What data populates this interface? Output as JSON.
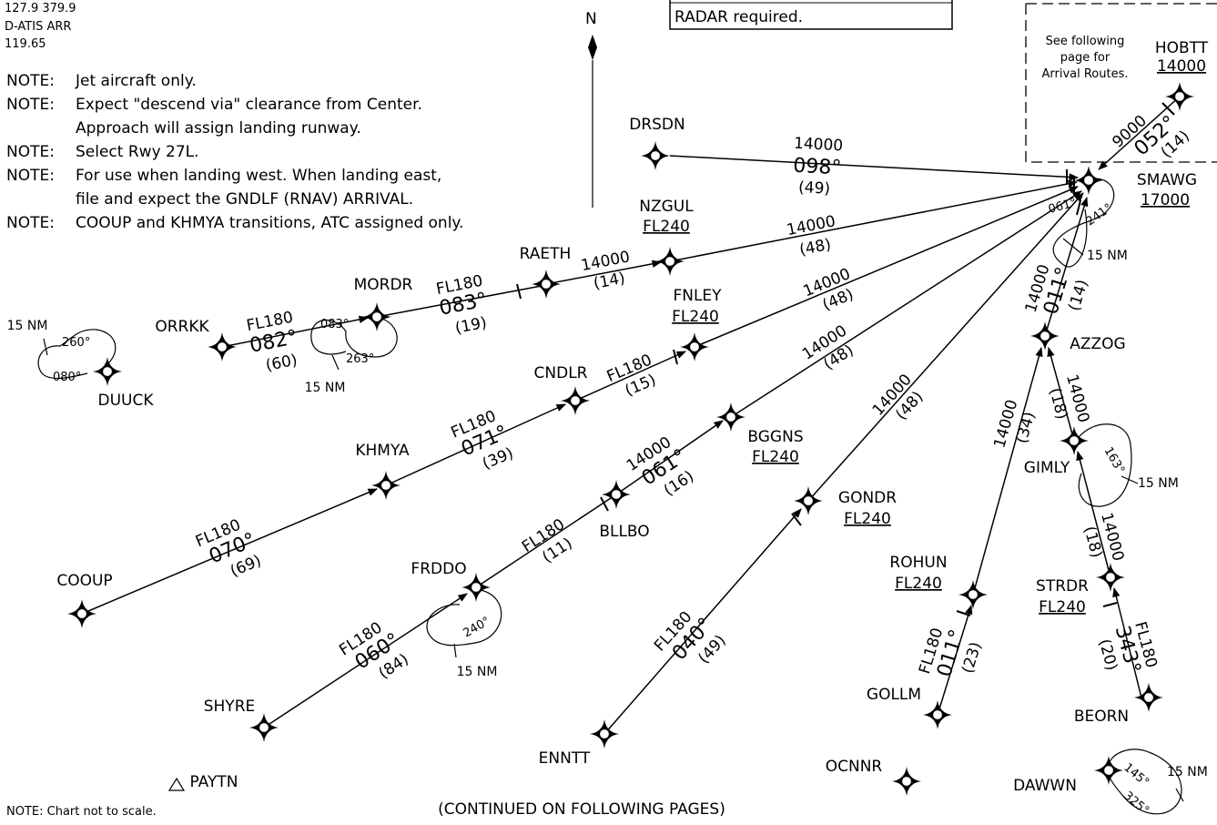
{
  "header": {
    "freq_line1": "127.9  379.9",
    "freq_line2": "D-ATIS ARR",
    "freq_line3": "119.65",
    "radar_note": "RADAR required.",
    "north": "N"
  },
  "notes": [
    {
      "prefix": "NOTE:",
      "text": "Jet aircraft only."
    },
    {
      "prefix": "NOTE:",
      "text": "Expect \"descend via\" clearance from Center."
    },
    {
      "prefix": "",
      "text": "Approach will assign landing runway."
    },
    {
      "prefix": "NOTE:",
      "text": "Select Rwy 27L."
    },
    {
      "prefix": "NOTE:",
      "text": "For use when landing west. When landing east,"
    },
    {
      "prefix": "",
      "text": "file and expect the GNDLF (RNAV) ARRIVAL."
    },
    {
      "prefix": "NOTE:",
      "text": "COOUP and KHMYA transitions, ATC assigned only."
    }
  ],
  "inset_note": [
    "See following",
    "page for",
    "Arrival Routes."
  ],
  "footer": {
    "scale_note": "NOTE:  Chart not to scale.",
    "continued": "(CONTINUED ON FOLLOWING PAGES)"
  },
  "fixes": {
    "HOBTT": {
      "name": "HOBTT",
      "alt": "14000"
    },
    "SMAWG": {
      "name": "SMAWG",
      "alt": "17000"
    },
    "DRSDN": {
      "name": "DRSDN"
    },
    "NZGUL": {
      "name": "NZGUL",
      "alt": "FL240"
    },
    "RAETH": {
      "name": "RAETH"
    },
    "MORDR": {
      "name": "MORDR"
    },
    "ORRKK": {
      "name": "ORRKK"
    },
    "DUUCK": {
      "name": "DUUCK"
    },
    "FNLEY": {
      "name": "FNLEY",
      "alt": "FL240"
    },
    "CNDLR": {
      "name": "CNDLR"
    },
    "KHMYA": {
      "name": "KHMYA"
    },
    "COOUP": {
      "name": "COOUP"
    },
    "BGGNS": {
      "name": "BGGNS",
      "alt": "FL240"
    },
    "BLLBO": {
      "name": "BLLBO"
    },
    "FRDDO": {
      "name": "FRDDO"
    },
    "SHYRE": {
      "name": "SHYRE"
    },
    "PAYTN": {
      "name": "PAYTN"
    },
    "ENNTT": {
      "name": "ENNTT"
    },
    "GONDR": {
      "name": "GONDR",
      "alt": "FL240"
    },
    "AZZOG": {
      "name": "AZZOG"
    },
    "GIMLY": {
      "name": "GIMLY"
    },
    "ROHUN": {
      "name": "ROHUN",
      "alt": "FL240"
    },
    "GOLLM": {
      "name": "GOLLM"
    },
    "STRDR": {
      "name": "STRDR",
      "alt": "FL240"
    },
    "BEORN": {
      "name": "BEORN"
    },
    "OCNNR": {
      "name": "OCNNR"
    },
    "DAWWN": {
      "name": "DAWWN"
    }
  },
  "legs": {
    "hobtt_smawg": {
      "alt": "9000",
      "course": "052°",
      "dist": "(14)"
    },
    "drsdn_smawg": {
      "alt": "14000",
      "course": "098°",
      "dist": "(49)"
    },
    "nzgul_smawg": {
      "alt": "14000",
      "dist": "(48)"
    },
    "raeth_nzgul": {
      "alt": "14000",
      "dist": "(14)"
    },
    "mordr_raeth": {
      "alt": "FL180",
      "course": "083°",
      "dist": "(19)"
    },
    "orrkk_mordr": {
      "alt": "FL180",
      "course": "082°",
      "dist": "(60)"
    },
    "fnley_smawg": {
      "alt": "14000",
      "dist": "(48)"
    },
    "cndlr_fnley": {
      "alt": "FL180",
      "dist": "(15)"
    },
    "khmya_cndlr": {
      "alt": "FL180",
      "course": "071°",
      "dist": "(39)"
    },
    "cooup_khmya": {
      "alt": "FL180",
      "course": "070°",
      "dist": "(69)"
    },
    "bggns_smawg": {
      "alt": "14000",
      "dist": "(48)"
    },
    "bllbo_bggns": {
      "alt": "14000",
      "course": "061°",
      "dist": "(16)"
    },
    "frddo_bllbo": {
      "alt": "FL180",
      "dist": "(11)"
    },
    "shyre_frddo": {
      "alt": "FL180",
      "course": "060°",
      "dist": "(84)"
    },
    "gondr_smawg": {
      "alt": "14000",
      "dist": "(48)"
    },
    "enntt_gondr": {
      "alt": "FL180",
      "course": "040°",
      "dist": "(49)"
    },
    "azzog_smawg": {
      "alt": "14000",
      "course": "011°",
      "dist": "(14)"
    },
    "rohun_azzog": {
      "alt": "14000",
      "dist": "(34)"
    },
    "gollm_rohun": {
      "alt": "FL180",
      "course": "011°",
      "dist": "(23)"
    },
    "gimly_azzog": {
      "alt": "14000",
      "dist": "(18)"
    },
    "strdr_gimly": {
      "alt": "14000",
      "dist": "(18)"
    },
    "beorn_strdr": {
      "alt": "FL180",
      "course": "343°",
      "dist": "(20)"
    }
  },
  "holds": {
    "smawg": {
      "in": "061°",
      "out": "241°",
      "leg": "15 NM"
    },
    "mordr": {
      "in": "083°",
      "out": "263°",
      "leg": "15 NM"
    },
    "duuck": {
      "in": "260°",
      "out": "080°",
      "leg": "15 NM"
    },
    "frddo": {
      "in": "240°",
      "leg": "15 NM"
    },
    "gimly": {
      "in": "163°",
      "leg": "15 NM"
    },
    "dawwn": {
      "in": "145°",
      "out": "325°",
      "leg": "15 NM"
    }
  }
}
